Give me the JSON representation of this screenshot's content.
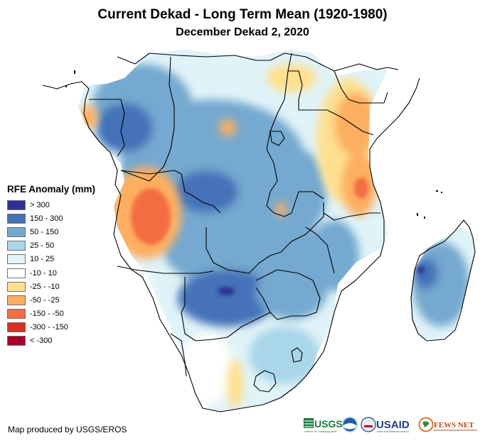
{
  "title": "Current Dekad - Long Term Mean (1920-1980)",
  "subtitle": "December Dekad 2, 2020",
  "legend": {
    "title": "RFE Anomaly (mm)",
    "items": [
      {
        "label": "> 300",
        "color": "#2e3192"
      },
      {
        "label": "150 - 300",
        "color": "#4472b8"
      },
      {
        "label": "50 - 150",
        "color": "#74a9cf"
      },
      {
        "label": "25 - 50",
        "color": "#a9d6e8"
      },
      {
        "label": "10 - 25",
        "color": "#e0f3f8"
      },
      {
        "label": "-10 - 10",
        "color": "#ffffff"
      },
      {
        "label": "-25 - -10",
        "color": "#fee090"
      },
      {
        "label": "-50 - -25",
        "color": "#fdae61"
      },
      {
        "label": "-150 - -50",
        "color": "#f46d43"
      },
      {
        "label": "-300 - -150",
        "color": "#d73027"
      },
      {
        "label": "< -300",
        "color": "#a50026"
      }
    ]
  },
  "credit": "Map produced by USGS/EROS",
  "logos": {
    "usgs": "USGS",
    "usgs_tagline": "science for a changing world",
    "noaa": "NOAA",
    "usaid": "USAID",
    "usaid_tagline": "FROM THE AMERICAN PEOPLE",
    "fewsnet": "FEWS NET"
  },
  "map": {
    "region": "Southern and Central Africa",
    "features": [
      {
        "name": "angola-dry-anomaly",
        "class": "-150 - -50"
      },
      {
        "name": "east-africa-dry-anomaly",
        "class": "-50 - -25"
      },
      {
        "name": "botswana-wet-anomaly",
        "class": "150 - 300"
      },
      {
        "name": "madagascar-wet-anomaly",
        "class": "150 - 300"
      }
    ]
  }
}
